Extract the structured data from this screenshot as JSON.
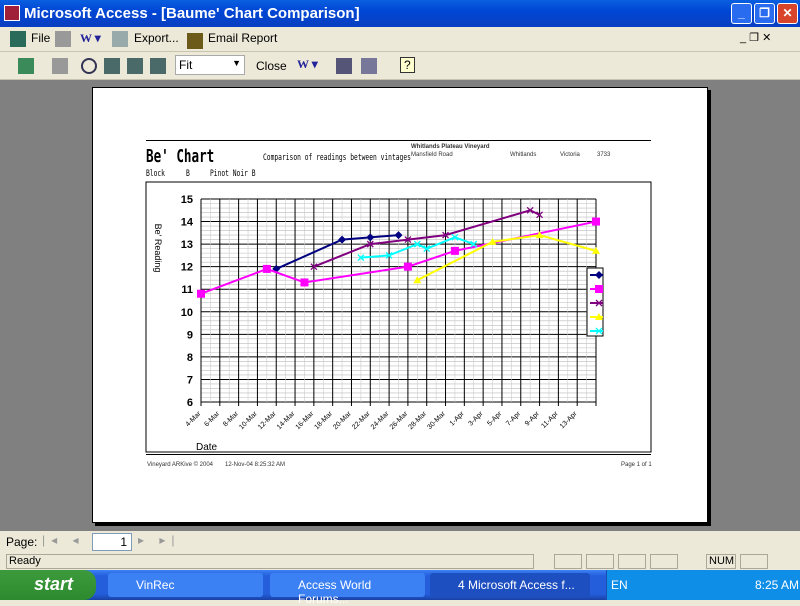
{
  "window": {
    "title": "Microsoft Access - [Baume' Chart Comparison]",
    "min": "_",
    "restore": "❐",
    "close": "✕"
  },
  "menubar": {
    "file": "File",
    "export": "Export...",
    "email": "Email Report"
  },
  "toolbar": {
    "zoom": "Fit",
    "close": "Close"
  },
  "report": {
    "title": "Be' Chart",
    "subtitle": "Comparison of readings between vintages",
    "block_label": "Block",
    "block": "B",
    "variety": "Pinot Noir B",
    "vineyard": "Whitlands Plateau Vineyard",
    "road": "Mansfield Road",
    "town": "Whitlands",
    "state": "Victoria",
    "postcode": "3733",
    "footer_left": "Vineyard ARKive © 2004",
    "footer_date": "12-Nov-04 8:25:32 AM",
    "footer_page": "Page 1 of 1"
  },
  "chart_data": {
    "type": "line",
    "xlabel": "Date",
    "ylabel": "Be' Reading",
    "ylim": [
      6,
      15
    ],
    "grid": true,
    "legend": "right",
    "x_ticks": [
      "4-Mar",
      "6-Mar",
      "8-Mar",
      "10-Mar",
      "12-Mar",
      "14-Mar",
      "16-Mar",
      "18-Mar",
      "20-Mar",
      "22-Mar",
      "24-Mar",
      "26-Mar",
      "28-Mar",
      "30-Mar",
      "1-Apr",
      "3-Apr",
      "5-Apr",
      "7-Apr",
      "9-Apr",
      "11-Apr",
      "13-Apr"
    ],
    "y_ticks": [
      15,
      14,
      13,
      12,
      11,
      10,
      9,
      8,
      7,
      6
    ],
    "series": [
      {
        "color": "#000080",
        "marker": "diamond",
        "points": [
          [
            "12-Mar",
            11.9
          ],
          [
            "19-Mar",
            13.2
          ],
          [
            "22-Mar",
            13.3
          ],
          [
            "25-Mar",
            13.4
          ]
        ]
      },
      {
        "color": "#ff00ff",
        "marker": "square",
        "points": [
          [
            "4-Mar",
            10.8
          ],
          [
            "11-Mar",
            11.9
          ],
          [
            "15-Mar",
            11.3
          ],
          [
            "26-Mar",
            12.0
          ],
          [
            "31-Mar",
            12.7
          ],
          [
            "15-Apr",
            14.0
          ]
        ]
      },
      {
        "color": "#800080",
        "marker": "x",
        "points": [
          [
            "16-Mar",
            12.0
          ],
          [
            "22-Mar",
            13.0
          ],
          [
            "26-Mar",
            13.2
          ],
          [
            "30-Mar",
            13.4
          ],
          [
            "8-Apr",
            14.5
          ],
          [
            "9-Apr",
            14.3
          ]
        ]
      },
      {
        "color": "#ffff00",
        "marker": "triangle",
        "points": [
          [
            "27-Mar",
            11.4
          ],
          [
            "4-Apr",
            13.1
          ],
          [
            "9-Apr",
            13.4
          ],
          [
            "15-Apr",
            12.7
          ]
        ]
      },
      {
        "color": "#00ffff",
        "marker": "x",
        "points": [
          [
            "21-Mar",
            12.4
          ],
          [
            "24-Mar",
            12.5
          ],
          [
            "27-Mar",
            13.0
          ],
          [
            "28-Mar",
            12.8
          ],
          [
            "31-Mar",
            13.3
          ],
          [
            "2-Apr",
            13.0
          ]
        ]
      }
    ]
  },
  "pager": {
    "label": "Page:",
    "page": "1"
  },
  "status": {
    "text": "Ready",
    "num": "NUM"
  },
  "taskbar": {
    "start": "start",
    "tasks": [
      "VinRec",
      "Access World Forums...",
      "4 Microsoft Access f..."
    ],
    "lang": "EN",
    "clock": "8:25 AM"
  }
}
